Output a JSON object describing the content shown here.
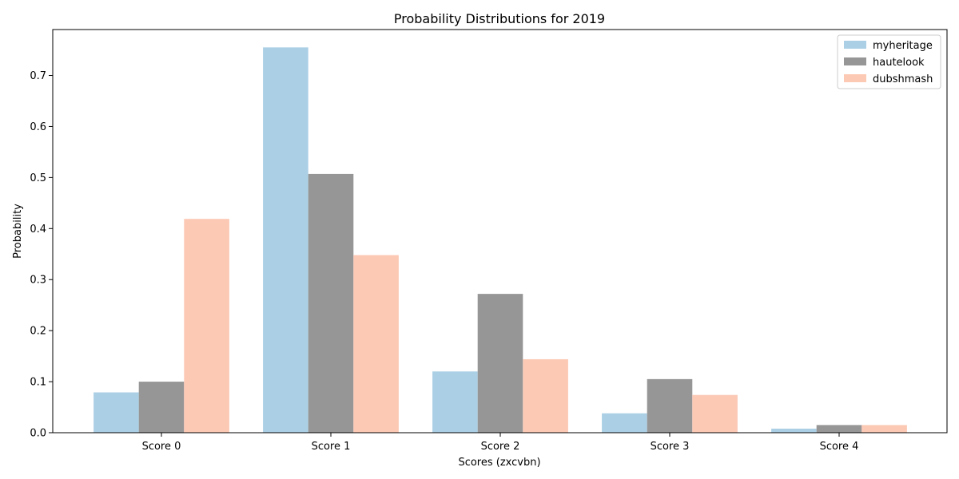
{
  "chart_data": {
    "type": "bar",
    "title": "Probability Distributions for 2019",
    "xlabel": "Scores (zxcvbn)",
    "ylabel": "Probability",
    "categories": [
      "Score 0",
      "Score 1",
      "Score 2",
      "Score 3",
      "Score 4"
    ],
    "ylim": [
      0,
      0.79
    ],
    "yticks": [
      "0.0",
      "0.1",
      "0.2",
      "0.3",
      "0.4",
      "0.5",
      "0.6",
      "0.7"
    ],
    "grid": false,
    "legend_position": "top-right",
    "series": [
      {
        "name": "myheritage",
        "color": "#abcfe5",
        "values": [
          0.079,
          0.755,
          0.12,
          0.038,
          0.008
        ]
      },
      {
        "name": "hautelook",
        "color": "#969696",
        "values": [
          0.1,
          0.507,
          0.272,
          0.105,
          0.015
        ]
      },
      {
        "name": "dubshmash",
        "color": "#fcc9b5",
        "values": [
          0.419,
          0.348,
          0.144,
          0.074,
          0.015
        ]
      }
    ]
  }
}
